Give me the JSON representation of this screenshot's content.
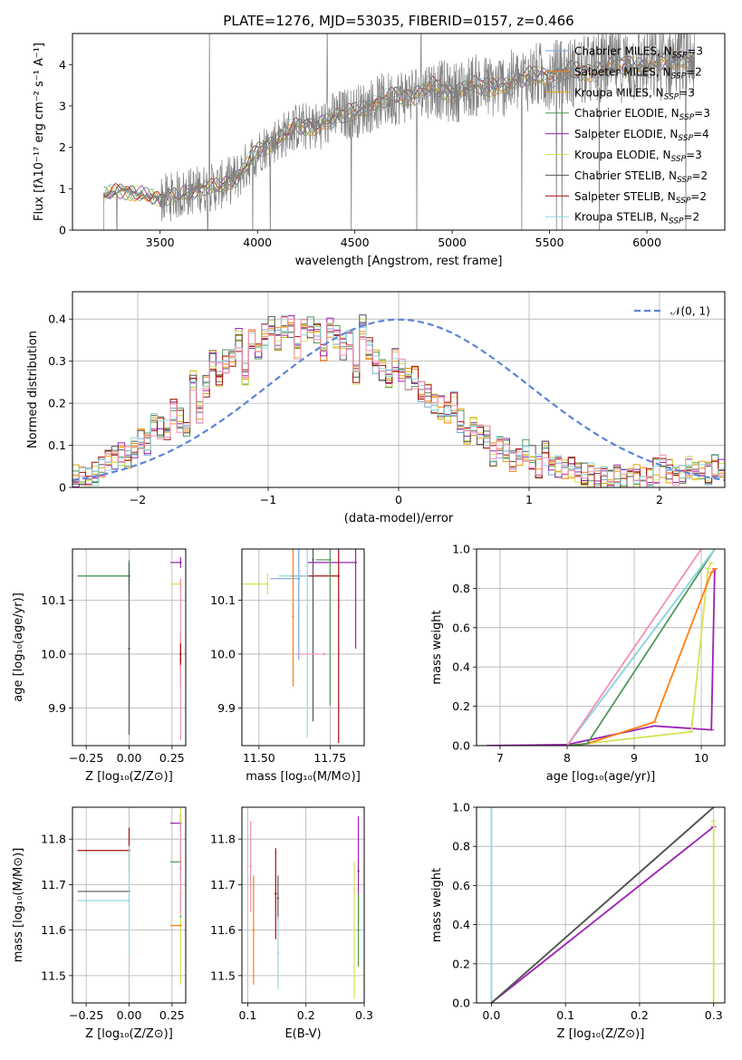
{
  "figure": {
    "title": "PLATE=1276, MJD=53035, FIBERID=0157, z=0.466"
  },
  "colors": {
    "Chabrier MILES": "#7aa6d6",
    "Salpeter MILES": "#ff7f0e",
    "Kroupa MILES": "#e3a600",
    "Chabrier ELODIE": "#4f9a55",
    "Salpeter ELODIE": "#9b22b3",
    "Kroupa ELODIE": "#d4e157",
    "Chabrier STELIB": "#555555",
    "Salpeter STELIB": "#a40f0f",
    "Kroupa STELIB": "#8fd8df",
    "Pink": "#f48fb1",
    "Data": "#808080",
    "Gaussian": "#5b86d6"
  },
  "chart_data": [
    {
      "id": "spectrum",
      "type": "line",
      "xlabel": "wavelength [Angstrom, rest frame]",
      "ylabel": "Flux [fλ10⁻¹⁷ erg cm⁻² s⁻¹ A⁻¹]",
      "xlim": [
        3050,
        6400
      ],
      "ylim": [
        0,
        4.75
      ],
      "xticks": [
        3500,
        4000,
        4500,
        5000,
        5500,
        6000
      ],
      "yticks": [
        0,
        1,
        2,
        3,
        4
      ],
      "grid": false,
      "legend_position": "right",
      "legend": [
        {
          "model": "Chabrier MILES",
          "nssp": "3"
        },
        {
          "model": "Salpeter MILES",
          "nssp": "2"
        },
        {
          "model": "Kroupa MILES",
          "nssp": "3"
        },
        {
          "model": "Chabrier ELODIE",
          "nssp": "3"
        },
        {
          "model": "Salpeter ELODIE",
          "nssp": "4"
        },
        {
          "model": "Kroupa ELODIE",
          "nssp": "3"
        },
        {
          "model": "Chabrier STELIB",
          "nssp": "2"
        },
        {
          "model": "Salpeter STELIB",
          "nssp": "2"
        },
        {
          "model": "Kroupa STELIB",
          "nssp": "2"
        }
      ],
      "continuum": {
        "x": [
          3210,
          3300,
          3400,
          3500,
          3600,
          3700,
          3800,
          3900,
          4000,
          4100,
          4200,
          4300,
          4400,
          4500,
          4600,
          4700,
          4800,
          4900,
          5000,
          5100,
          5200,
          5300,
          5400,
          5500,
          5600,
          5700,
          5800,
          5900,
          6000,
          6100,
          6200
        ],
        "y": [
          0.85,
          0.95,
          0.88,
          0.75,
          0.85,
          1.0,
          1.05,
          1.3,
          1.9,
          2.2,
          2.5,
          2.5,
          2.75,
          2.85,
          3.05,
          3.2,
          3.3,
          3.45,
          3.3,
          3.5,
          3.45,
          3.55,
          3.7,
          3.75,
          3.8,
          3.85,
          3.95,
          4.0,
          3.95,
          4.1,
          4.15
        ]
      }
    },
    {
      "id": "residuals",
      "type": "line",
      "xlabel": "(data-model)/error",
      "ylabel": "Normed distribution",
      "xlim": [
        -2.5,
        2.5
      ],
      "ylim": [
        0,
        0.465
      ],
      "xticks": [
        -2,
        -1,
        0,
        1,
        2
      ],
      "yticks": [
        0.0,
        0.1,
        0.2,
        0.3,
        0.4
      ],
      "grid": true,
      "legend_position": "top-right",
      "gaussian_label": "𝒩(0, 1)",
      "bin_width": 0.1,
      "base_hist": [
        0.025,
        0.02,
        0.025,
        0.03,
        0.05,
        0.06,
        0.07,
        0.08,
        0.07,
        0.1,
        0.12,
        0.1,
        0.15,
        0.14,
        0.13,
        0.18,
        0.16,
        0.14,
        0.25,
        0.18,
        0.24,
        0.3,
        0.27,
        0.3,
        0.31,
        0.35,
        0.27,
        0.35,
        0.33,
        0.36,
        0.38,
        0.35,
        0.38,
        0.38,
        0.33,
        0.37,
        0.38,
        0.36,
        0.32,
        0.38,
        0.36,
        0.33,
        0.35,
        0.27,
        0.38,
        0.33,
        0.3,
        0.28,
        0.25,
        0.3,
        0.28,
        0.26,
        0.26,
        0.23,
        0.22,
        0.2,
        0.19,
        0.18,
        0.2,
        0.16,
        0.13,
        0.15,
        0.12,
        0.12,
        0.08,
        0.1,
        0.09,
        0.06,
        0.08,
        0.09,
        0.07,
        0.05,
        0.08,
        0.06,
        0.05,
        0.04,
        0.05,
        0.04,
        0.03,
        0.03,
        0.02,
        0.02,
        0.02,
        0.03,
        0.02,
        0.02,
        0.03,
        0.02,
        0.02,
        0.04,
        0.05,
        0.04,
        0.03,
        0.03,
        0.05,
        0.04,
        0.04,
        0.03,
        0.05,
        0.04
      ]
    },
    {
      "id": "age_vs_Z",
      "type": "scatter",
      "xlabel": "Z [log₁₀(Z/Z⊙)]",
      "ylabel": "age  [log₁₀(age/yr)]",
      "xlim": [
        -0.33,
        0.33
      ],
      "ylim": [
        9.83,
        10.195
      ],
      "xticks": [
        "-0.25",
        "0.00",
        "0.25"
      ],
      "xtick_values": [
        -0.25,
        0.0,
        0.25
      ],
      "yticks": [
        "9.9",
        "10.0",
        "10.1"
      ],
      "ytick_values": [
        9.9,
        10.0,
        10.1
      ],
      "grid": true,
      "points": [
        {
          "model": "Kroupa STELIB",
          "x": 0.0,
          "y": 10.145,
          "xerr": 0.3,
          "yerr": 0.03
        },
        {
          "model": "Chabrier MILES",
          "x": 0.0,
          "y": 10.145,
          "xerr": 0.3,
          "yerr": 0.02
        },
        {
          "model": "Chabrier ELODIE",
          "x": 0.0,
          "y": 10.145,
          "xerr": 0.3,
          "yerr": 0.03
        },
        {
          "model": "Chabrier STELIB",
          "x": 0.0,
          "y": 10.01,
          "xerr": 0.0,
          "yerr": 0.16
        },
        {
          "model": "Salpeter ELODIE",
          "x": 0.3,
          "y": 10.17,
          "xerr": 0.06,
          "yerr": 0.01
        },
        {
          "model": "Kroupa ELODIE",
          "x": 0.3,
          "y": 10.13,
          "xerr": 0.05,
          "yerr": 0.01
        },
        {
          "model": "Salpeter MILES",
          "x": 0.3,
          "y": 9.99,
          "xerr": 0.0,
          "yerr": 0.05
        },
        {
          "model": "Pink",
          "x": 0.3,
          "y": 9.99,
          "xerr": 0.0,
          "yerr": 0.15
        },
        {
          "model": "Salpeter STELIB",
          "x": 0.3,
          "y": 10.0,
          "xerr": 0.0,
          "yerr": 0.02
        }
      ]
    },
    {
      "id": "age_vs_mass",
      "type": "scatter",
      "xlabel": "mass [log₁₀(M/M⊙)]",
      "ylabel": "",
      "xlim": [
        11.44,
        11.87
      ],
      "ylim": [
        9.83,
        10.195
      ],
      "xticks": [
        "11.50",
        "11.75"
      ],
      "xtick_values": [
        11.5,
        11.75
      ],
      "yticks": [
        "9.9",
        "10.0",
        "10.1"
      ],
      "ytick_values": [
        9.9,
        10.0,
        10.1
      ],
      "grid": true,
      "points": [
        {
          "model": "Salpeter ELODIE",
          "x": 11.84,
          "y": 10.17,
          "xerr": 0.17,
          "yerr": 0.16
        },
        {
          "model": "Salpeter STELIB",
          "x": 11.78,
          "y": 10.145,
          "xerr": 0.17,
          "yerr": 0.31
        },
        {
          "model": "Kroupa ELODIE",
          "x": 11.53,
          "y": 10.13,
          "xerr": 0.25,
          "yerr": 0.02
        },
        {
          "model": "Chabrier MILES",
          "x": 11.64,
          "y": 10.14,
          "xerr": 0.1,
          "yerr": 0.15
        },
        {
          "model": "Kroupa STELIB",
          "x": 11.67,
          "y": 10.145,
          "xerr": 0.1,
          "yerr": 0.3
        },
        {
          "model": "Chabrier ELODIE",
          "x": 11.75,
          "y": 10.175,
          "xerr": 0.05,
          "yerr": 0.27
        },
        {
          "model": "Chabrier STELIB",
          "x": 11.69,
          "y": 10.175,
          "xerr": 0.0,
          "yerr": 0.3
        },
        {
          "model": "Salpeter MILES",
          "x": 11.62,
          "y": 10.07,
          "xerr": 0.0,
          "yerr": 0.13
        },
        {
          "model": "Pink",
          "x": 11.73,
          "y": 10.0,
          "xerr": 0.1,
          "yerr": 0.0
        }
      ]
    },
    {
      "id": "cum_age",
      "type": "line",
      "xlabel": "age  [log₁₀(age/yr)]",
      "ylabel": "mass weight",
      "xlim": [
        6.65,
        10.35
      ],
      "ylim": [
        0,
        1.0
      ],
      "xticks": [
        "7",
        "8",
        "9",
        "10"
      ],
      "xtick_values": [
        7,
        8,
        9,
        10
      ],
      "yticks": [
        "0.0",
        "0.2",
        "0.4",
        "0.6",
        "0.8",
        "1.0"
      ],
      "ytick_values": [
        0,
        0.2,
        0.4,
        0.6,
        0.8,
        1.0
      ],
      "grid": true,
      "series": [
        {
          "model": "Salpeter ELODIE",
          "x": [
            6.8,
            8.0,
            9.3,
            10.15,
            10.2
          ],
          "y": [
            0.0,
            0.005,
            0.1,
            0.08,
            0.9
          ]
        },
        {
          "model": "Kroupa ELODIE",
          "x": [
            8.0,
            9.85,
            10.1,
            10.15
          ],
          "y": [
            0.0,
            0.07,
            0.9,
            0.93
          ]
        },
        {
          "model": "Salpeter MILES",
          "x": [
            8.0,
            8.3,
            9.3,
            10.15,
            10.2
          ],
          "y": [
            0.0,
            0.01,
            0.12,
            0.88,
            0.9
          ]
        },
        {
          "model": "Chabrier ELODIE",
          "x": [
            8.0,
            8.3,
            10.2
          ],
          "y": [
            0.0,
            0.01,
            1.0
          ]
        },
        {
          "model": "Chabrier MILES",
          "x": [
            8.0,
            10.2
          ],
          "y": [
            0.0,
            1.0
          ]
        },
        {
          "model": "Kroupa STELIB",
          "x": [
            8.0,
            10.2
          ],
          "y": [
            0.0,
            1.0
          ]
        },
        {
          "model": "Pink",
          "x": [
            8.0,
            10.0
          ],
          "y": [
            0.0,
            1.0
          ]
        }
      ]
    },
    {
      "id": "mass_vs_Z",
      "type": "scatter",
      "xlabel": "Z [log₁₀(Z/Z⊙)]",
      "ylabel": "mass [log₁₀(M/M⊙)]",
      "xlim": [
        -0.33,
        0.33
      ],
      "ylim": [
        11.44,
        11.87
      ],
      "xticks": [
        "-0.25",
        "0.00",
        "0.25"
      ],
      "xtick_values": [
        -0.25,
        0.0,
        0.25
      ],
      "yticks": [
        "11.5",
        "11.6",
        "11.7",
        "11.8"
      ],
      "ytick_values": [
        11.5,
        11.6,
        11.7,
        11.8
      ],
      "grid": true,
      "points": [
        {
          "model": "Salpeter STELIB",
          "x": 0.0,
          "y": 11.775,
          "xerr": 0.3,
          "yerr": 0.05
        },
        {
          "model": "Chabrier STELIB",
          "x": 0.0,
          "y": 11.685,
          "xerr": 0.3,
          "yerr": 0.0
        },
        {
          "model": "Kroupa STELIB",
          "x": 0.0,
          "y": 11.665,
          "xerr": 0.3,
          "yerr": 0.12
        },
        {
          "model": "Salpeter ELODIE",
          "x": 0.3,
          "y": 11.835,
          "xerr": 0.06,
          "yerr": 0.02
        },
        {
          "model": "Chabrier ELODIE",
          "x": 0.3,
          "y": 11.75,
          "xerr": 0.06,
          "yerr": 0.01
        },
        {
          "model": "Kroupa ELODIE",
          "x": 0.3,
          "y": 11.68,
          "xerr": 0.0,
          "yerr": 0.2
        },
        {
          "model": "Salpeter MILES",
          "x": 0.3,
          "y": 11.61,
          "xerr": 0.06,
          "yerr": 0.0
        },
        {
          "model": "Chabrier MILES",
          "x": 0.3,
          "y": 11.63,
          "xerr": 0.0,
          "yerr": 0.0
        },
        {
          "model": "Pink",
          "x": 0.3,
          "y": 11.735,
          "xerr": 0.0,
          "yerr": 0.1
        }
      ]
    },
    {
      "id": "mass_vs_ebv",
      "type": "scatter",
      "xlabel": "E(B-V)",
      "ylabel": "",
      "xlim": [
        0.09,
        0.3
      ],
      "ylim": [
        11.44,
        11.87
      ],
      "xticks": [
        "0.1",
        "0.2",
        "0.3"
      ],
      "xtick_values": [
        0.1,
        0.2,
        0.3
      ],
      "yticks": [
        "11.5",
        "11.6",
        "11.7",
        "11.8"
      ],
      "ytick_values": [
        11.5,
        11.6,
        11.7,
        11.8
      ],
      "grid": true,
      "points": [
        {
          "model": "Pink",
          "x": 0.105,
          "y": 11.74,
          "xerr": 0.0,
          "yerr": 0.1
        },
        {
          "model": "Salpeter MILES",
          "x": 0.11,
          "y": 11.6,
          "xerr": 0.0,
          "yerr": 0.12
        },
        {
          "model": "Salpeter STELIB",
          "x": 0.148,
          "y": 11.68,
          "xerr": 0.0,
          "yerr": 0.1
        },
        {
          "model": "Chabrier STELIB",
          "x": 0.152,
          "y": 11.67,
          "xerr": 0.0,
          "yerr": 0.05
        },
        {
          "model": "Kroupa STELIB",
          "x": 0.152,
          "y": 11.55,
          "xerr": 0.0,
          "yerr": 0.08
        },
        {
          "model": "Kroupa ELODIE",
          "x": 0.283,
          "y": 11.6,
          "xerr": 0.0,
          "yerr": 0.15
        },
        {
          "model": "Salpeter ELODIE",
          "x": 0.29,
          "y": 11.73,
          "xerr": 0.0,
          "yerr": 0.12
        },
        {
          "model": "Chabrier ELODIE",
          "x": 0.29,
          "y": 11.6,
          "xerr": 0.0,
          "yerr": 0.08
        }
      ]
    },
    {
      "id": "cum_Z",
      "type": "line",
      "xlabel": "Z [log₁₀(Z/Z⊙)]",
      "ylabel": "mass weight",
      "xlim": [
        -0.02,
        0.315
      ],
      "ylim": [
        0,
        1.0
      ],
      "xticks": [
        "0.0",
        "0.1",
        "0.2",
        "0.3"
      ],
      "xtick_values": [
        0.0,
        0.1,
        0.2,
        0.3
      ],
      "yticks": [
        "0.0",
        "0.2",
        "0.4",
        "0.6",
        "0.8",
        "1.0"
      ],
      "ytick_values": [
        0,
        0.2,
        0.4,
        0.6,
        0.8,
        1.0
      ],
      "grid": true,
      "series": [
        {
          "model": "Kroupa STELIB",
          "x": [
            0.0,
            0.0
          ],
          "y": [
            0.0,
            1.0
          ]
        },
        {
          "model": "Salpeter ELODIE",
          "x": [
            0.0,
            0.3
          ],
          "y": [
            0.0,
            0.9
          ]
        },
        {
          "model": "Chabrier ELODIE",
          "x": [
            0.0,
            0.3
          ],
          "y": [
            0.0,
            1.0
          ]
        },
        {
          "model": "Chabrier STELIB",
          "x": [
            0.0,
            0.3
          ],
          "y": [
            0.0,
            1.0
          ]
        },
        {
          "model": "Kroupa ELODIE",
          "x": [
            0.3,
            0.3
          ],
          "y": [
            0.0,
            0.93
          ]
        }
      ]
    }
  ]
}
